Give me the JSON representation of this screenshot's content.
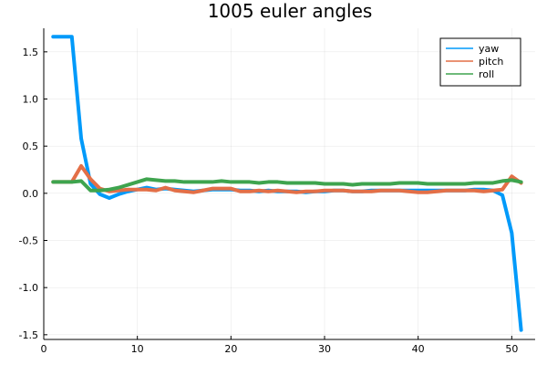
{
  "chart_data": {
    "type": "line",
    "title": "1005 euler angles",
    "xlabel": "",
    "ylabel": "",
    "xlim": [
      0,
      52.5
    ],
    "ylim": [
      -1.55,
      1.75
    ],
    "xticks": [
      0,
      10,
      20,
      30,
      40,
      50
    ],
    "yticks": [
      -1.5,
      -1.0,
      -0.5,
      0.0,
      0.5,
      1.0,
      1.5
    ],
    "xtick_labels": [
      "0",
      "10",
      "20",
      "30",
      "40",
      "50"
    ],
    "ytick_labels": [
      "-1.5",
      "-1.0",
      "-0.5",
      "0.0",
      "0.5",
      "1.0",
      "1.5"
    ],
    "grid": true,
    "legend_position": "top-right",
    "x": [
      1,
      2,
      3,
      4,
      5,
      6,
      7,
      8,
      9,
      10,
      11,
      12,
      13,
      14,
      15,
      16,
      17,
      18,
      19,
      20,
      21,
      22,
      23,
      24,
      25,
      26,
      27,
      28,
      29,
      30,
      31,
      32,
      33,
      34,
      35,
      36,
      37,
      38,
      39,
      40,
      41,
      42,
      43,
      44,
      45,
      46,
      47,
      48,
      49,
      50,
      51
    ],
    "series": [
      {
        "name": "yaw",
        "color": "#009AFA",
        "values": [
          1.66,
          1.66,
          1.66,
          0.58,
          0.1,
          -0.01,
          -0.05,
          -0.01,
          0.02,
          0.04,
          0.06,
          0.04,
          0.05,
          0.04,
          0.03,
          0.02,
          0.03,
          0.04,
          0.04,
          0.04,
          0.03,
          0.03,
          0.02,
          0.03,
          0.02,
          0.02,
          0.02,
          0.01,
          0.02,
          0.02,
          0.03,
          0.03,
          0.02,
          0.02,
          0.03,
          0.03,
          0.03,
          0.03,
          0.03,
          0.03,
          0.03,
          0.03,
          0.03,
          0.03,
          0.03,
          0.04,
          0.04,
          0.03,
          -0.02,
          -0.42,
          -1.45
        ]
      },
      {
        "name": "pitch",
        "color": "#E36F47",
        "values": [
          0.12,
          0.12,
          0.12,
          0.29,
          0.15,
          0.05,
          0.02,
          0.03,
          0.04,
          0.04,
          0.04,
          0.03,
          0.06,
          0.03,
          0.02,
          0.01,
          0.03,
          0.05,
          0.05,
          0.05,
          0.02,
          0.02,
          0.03,
          0.02,
          0.03,
          0.02,
          0.01,
          0.02,
          0.02,
          0.03,
          0.03,
          0.03,
          0.02,
          0.02,
          0.02,
          0.03,
          0.03,
          0.03,
          0.02,
          0.01,
          0.01,
          0.02,
          0.03,
          0.03,
          0.03,
          0.03,
          0.02,
          0.03,
          0.04,
          0.18,
          0.11
        ]
      },
      {
        "name": "roll",
        "color": "#3EA44E",
        "values": [
          0.12,
          0.12,
          0.12,
          0.13,
          0.03,
          0.03,
          0.04,
          0.06,
          0.09,
          0.12,
          0.15,
          0.14,
          0.13,
          0.13,
          0.12,
          0.12,
          0.12,
          0.12,
          0.13,
          0.12,
          0.12,
          0.12,
          0.11,
          0.12,
          0.12,
          0.11,
          0.11,
          0.11,
          0.11,
          0.1,
          0.1,
          0.1,
          0.09,
          0.1,
          0.1,
          0.1,
          0.1,
          0.11,
          0.11,
          0.11,
          0.1,
          0.1,
          0.1,
          0.1,
          0.1,
          0.11,
          0.11,
          0.11,
          0.13,
          0.14,
          0.12
        ]
      }
    ]
  }
}
